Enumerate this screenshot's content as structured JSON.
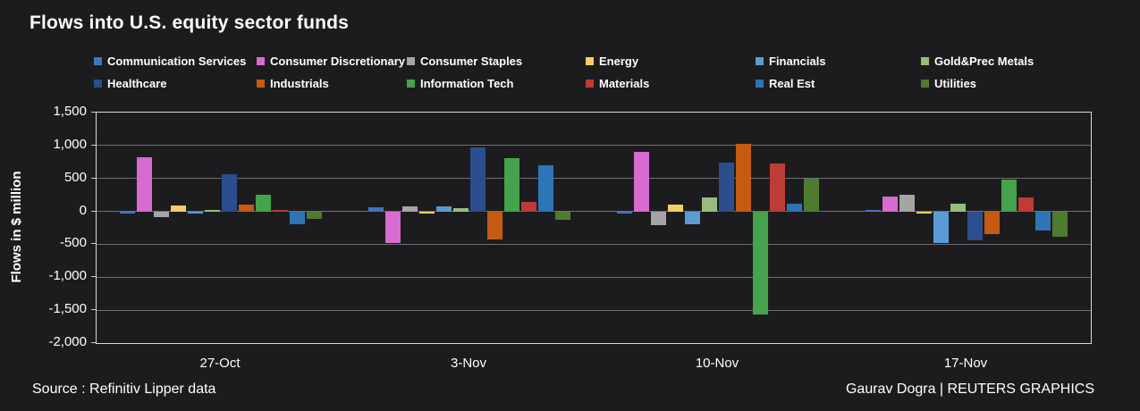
{
  "title": "Flows into U.S. equity sector funds",
  "colors": {
    "background": "#1C1C1E",
    "text": "#FFFFFF",
    "gridline": "#6F6F6F",
    "plot_border": "#D9D9D9"
  },
  "chart_data": {
    "type": "bar",
    "title": "Flows into U.S. equity sector funds",
    "xlabel": "",
    "ylabel": "Flows in $ million",
    "ylim": [
      -2000,
      1500
    ],
    "ytick_step": 500,
    "ytick_labels": [
      "1,500",
      "1,000",
      "500",
      "0",
      "-500",
      "-1,000",
      "-1,500",
      "-2,000"
    ],
    "grid": true,
    "legend_position": "top",
    "categories": [
      "27-Oct",
      "3-Nov",
      "10-Nov",
      "17-Nov"
    ],
    "series": [
      {
        "name": "Communication Services",
        "color": "#4472C4",
        "values": [
          -30,
          60,
          -25,
          20
        ]
      },
      {
        "name": "Consumer Discretionary",
        "color": "#D66BD0",
        "values": [
          820,
          -480,
          900,
          220
        ]
      },
      {
        "name": "Consumer Staples",
        "color": "#A5A5A5",
        "values": [
          -90,
          75,
          -210,
          255
        ]
      },
      {
        "name": "Energy",
        "color": "#F2CE63",
        "values": [
          90,
          -20,
          105,
          -20
        ]
      },
      {
        "name": "Financials",
        "color": "#5B9BD5",
        "values": [
          -25,
          80,
          -195,
          -480
        ]
      },
      {
        "name": "Gold&Prec Metals",
        "color": "#96BD7E",
        "values": [
          25,
          50,
          215,
          115
        ]
      },
      {
        "name": "Healthcare",
        "color": "#2C4D8E",
        "values": [
          570,
          975,
          745,
          -445
        ]
      },
      {
        "name": "Industrials",
        "color": "#C55A11",
        "values": [
          100,
          -425,
          1030,
          -340
        ]
      },
      {
        "name": "Information Tech",
        "color": "#45A24D",
        "values": [
          250,
          810,
          -1560,
          480
        ]
      },
      {
        "name": "Materials",
        "color": "#BF3B38",
        "values": [
          15,
          145,
          730,
          205
        ]
      },
      {
        "name": "Real Est",
        "color": "#2E75B6",
        "values": [
          -195,
          695,
          120,
          -285
        ]
      },
      {
        "name": "Utilities",
        "color": "#4F7B31",
        "values": [
          -115,
          -130,
          490,
          -385
        ]
      }
    ]
  },
  "footer": {
    "source": "Source : Refinitiv Lipper data",
    "credit": "Gaurav Dogra | REUTERS GRAPHICS"
  }
}
